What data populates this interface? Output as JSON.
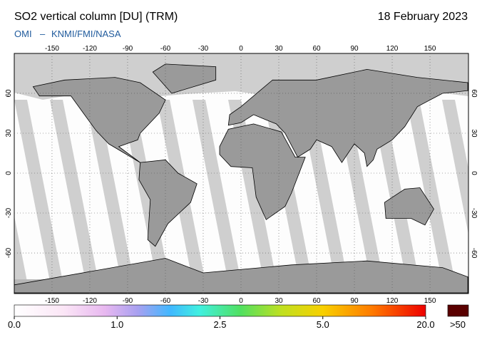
{
  "header": {
    "title": "SO2 vertical column [DU] (TRM)",
    "date": "18 February 2023",
    "instrument": "OMI",
    "separator": "–",
    "institutions": "KNMI/FMI/NASA"
  },
  "map": {
    "lon_ticks": [
      -150,
      -120,
      -90,
      -60,
      -30,
      0,
      30,
      60,
      90,
      120,
      150
    ],
    "lat_ticks": [
      60,
      30,
      0,
      -30,
      -60
    ]
  },
  "colorbar": {
    "ticks": [
      {
        "value": 0,
        "label": "0.0"
      },
      {
        "value": 1,
        "label": "1.0"
      },
      {
        "value": 2.5,
        "label": "2.5"
      },
      {
        "value": 5,
        "label": "5.0"
      },
      {
        "value": 20,
        "label": "20.0"
      }
    ],
    "overflow_label": ">50"
  }
}
